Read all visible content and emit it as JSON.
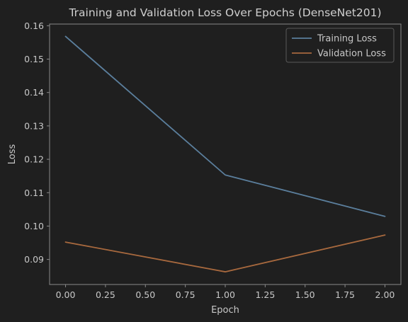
{
  "chart_data": {
    "type": "line",
    "title": "Training and Validation Loss Over Epochs (DenseNet201)",
    "xlabel": "Epoch",
    "ylabel": "Loss",
    "x": [
      0,
      1,
      2
    ],
    "xlim": [
      -0.1,
      2.1
    ],
    "ylim": [
      0.0825,
      0.1605
    ],
    "xticks": [
      "0.00",
      "0.25",
      "0.50",
      "0.75",
      "1.00",
      "1.25",
      "1.50",
      "1.75",
      "2.00"
    ],
    "yticks": [
      "0.09",
      "0.10",
      "0.11",
      "0.12",
      "0.13",
      "0.14",
      "0.15",
      "0.16"
    ],
    "grid": false,
    "legend_position": "top-right",
    "series": [
      {
        "name": "Training Loss",
        "values": [
          0.1568,
          0.1153,
          0.1029
        ],
        "color": "#5b7f9d"
      },
      {
        "name": "Validation Loss",
        "values": [
          0.0952,
          0.0863,
          0.0973
        ],
        "color": "#a8693e"
      }
    ]
  },
  "colors": {
    "background": "#1f1f1f",
    "axes": "#8a8a8a",
    "text": "#c8c8c8"
  }
}
